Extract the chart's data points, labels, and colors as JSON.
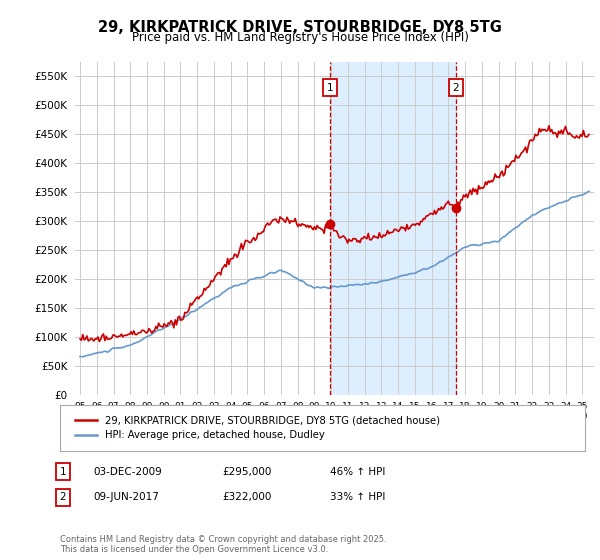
{
  "title": "29, KIRKPATRICK DRIVE, STOURBRIDGE, DY8 5TG",
  "subtitle": "Price paid vs. HM Land Registry's House Price Index (HPI)",
  "legend_label_red": "29, KIRKPATRICK DRIVE, STOURBRIDGE, DY8 5TG (detached house)",
  "legend_label_blue": "HPI: Average price, detached house, Dudley",
  "annotation1_label": "1",
  "annotation1_date": "03-DEC-2009",
  "annotation1_price": "£295,000",
  "annotation1_hpi": "46% ↑ HPI",
  "annotation2_label": "2",
  "annotation2_date": "09-JUN-2017",
  "annotation2_price": "£322,000",
  "annotation2_hpi": "33% ↑ HPI",
  "footnote": "Contains HM Land Registry data © Crown copyright and database right 2025.\nThis data is licensed under the Open Government Licence v3.0.",
  "ylim": [
    0,
    575000
  ],
  "yticks": [
    0,
    50000,
    100000,
    150000,
    200000,
    250000,
    300000,
    350000,
    400000,
    450000,
    500000,
    550000
  ],
  "xlim_start": 1994.7,
  "xlim_end": 2025.7,
  "vline1_x": 2009.92,
  "vline2_x": 2017.44,
  "purchase1_x": 2009.92,
  "purchase1_y": 295000,
  "purchase2_x": 2017.44,
  "purchase2_y": 322000,
  "shade_color": "#ddeeff",
  "red_color": "#cc0000",
  "blue_color": "#6699cc",
  "grid_color": "#cccccc",
  "background_color": "#ffffff"
}
